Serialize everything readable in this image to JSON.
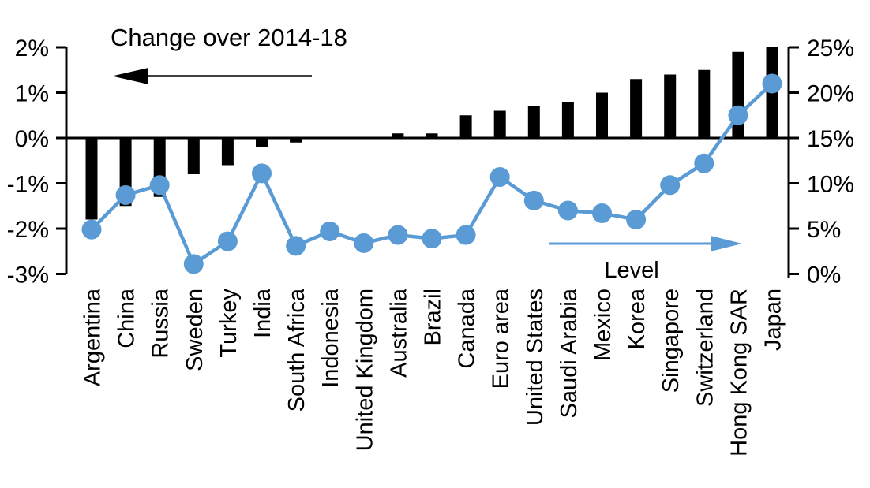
{
  "chart_data": {
    "type": "combo-bar-line",
    "title": "",
    "categories": [
      "Argentina",
      "China",
      "Russia",
      "Sweden",
      "Turkey",
      "India",
      "South Africa",
      "Indonesia",
      "United Kingdom",
      "Australia",
      "Brazil",
      "Canada",
      "Euro area",
      "United States",
      "Saudi Arabia",
      "Mexico",
      "Korea",
      "Singapore",
      "Switzerland",
      "Hong Kong SAR",
      "Japan"
    ],
    "series": [
      {
        "name": "Change over 2014-18",
        "type": "bar",
        "axis": "left",
        "color": "#000000",
        "values": [
          -1.8,
          -1.5,
          -1.3,
          -0.8,
          -0.6,
          -0.2,
          -0.1,
          0,
          0,
          0.1,
          0.1,
          0.5,
          0.6,
          0.7,
          0.8,
          1.0,
          1.3,
          1.4,
          1.5,
          1.9,
          2.0
        ]
      },
      {
        "name": "Level",
        "type": "line",
        "axis": "right",
        "color": "#5B9BD5",
        "values": [
          4.9,
          8.7,
          9.8,
          1.1,
          3.6,
          11.1,
          3.1,
          4.7,
          3.4,
          4.3,
          3.9,
          4.3,
          10.7,
          8.1,
          7.0,
          6.7,
          6.0,
          9.8,
          12.2,
          17.5,
          21.0
        ]
      }
    ],
    "left_axis": {
      "tick_labels": [
        "2%",
        "1%",
        "0%",
        "-1%",
        "-2%",
        "-3%"
      ],
      "tick_values": [
        2,
        1,
        0,
        -1,
        -2,
        -3
      ],
      "range": [
        -3,
        2
      ]
    },
    "right_axis": {
      "tick_labels": [
        "25%",
        "20%",
        "15%",
        "10%",
        "5%",
        "0%"
      ],
      "tick_values": [
        25,
        20,
        15,
        10,
        5,
        0
      ],
      "range": [
        0,
        25
      ]
    },
    "annotations": {
      "bar_label": "Change over 2014-18",
      "line_label": "Level",
      "bar_arrow_direction": "left",
      "line_arrow_direction": "right"
    },
    "grid": false,
    "legend_position": "in-plot-annotations",
    "background": "#FFFFFF"
  }
}
